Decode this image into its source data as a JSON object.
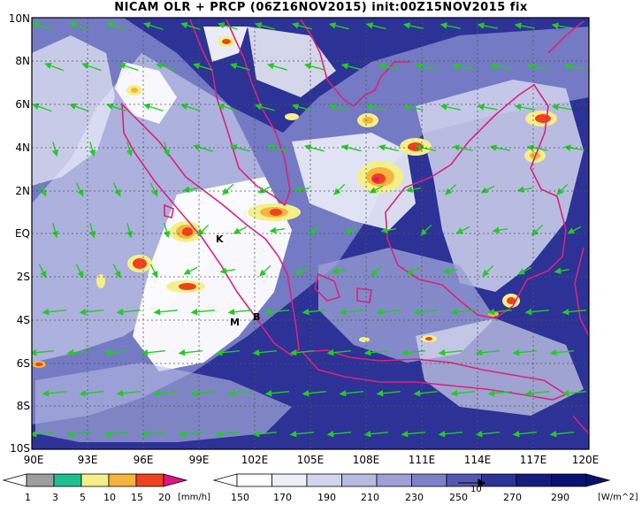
{
  "title": "NICAM OLR + PRCP (06Z16NOV2015) init:00Z15NOV2015 fix",
  "axes": {
    "y_labels": [
      "10N",
      "8N",
      "6N",
      "4N",
      "2N",
      "EQ",
      "2S",
      "4S",
      "6S",
      "8S",
      "10S"
    ],
    "x_labels": [
      "90E",
      "93E",
      "96E",
      "99E",
      "102E",
      "105E",
      "108E",
      "111E",
      "114E",
      "117E",
      "120E"
    ]
  },
  "markers": [
    {
      "label": "K",
      "lon": 101.0,
      "lat": -0.2
    },
    {
      "label": "M",
      "lon": 100.3,
      "lat": -4.0
    },
    {
      "label": "B",
      "lon": 101.7,
      "lat": -3.8
    }
  ],
  "precip_colorbar": {
    "labels": [
      "1",
      "3",
      "5",
      "10",
      "15",
      "20"
    ],
    "unit": "[mm/h]",
    "colors": [
      "#9e9e9e",
      "#1fbf8f",
      "#f3f08a",
      "#f5b53c",
      "#f0421e",
      "#e0157f"
    ]
  },
  "olr_colorbar": {
    "labels": [
      "150",
      "170",
      "190",
      "210",
      "230",
      "250",
      "270",
      "290"
    ],
    "unit": "[W/m^2]",
    "colors": [
      "#ffffff",
      "#eceef8",
      "#d2d5ee",
      "#b6bbe2",
      "#9ba0d6",
      "#7c82c8",
      "#5359b0",
      "#2c3296",
      "#161c7e",
      "#0b1170"
    ]
  },
  "vector_scale_label": "10",
  "colors": {
    "background": "#ffffff",
    "coastline": "#d9237d",
    "wind_vectors": "#22cc22",
    "frame": "#000000"
  }
}
